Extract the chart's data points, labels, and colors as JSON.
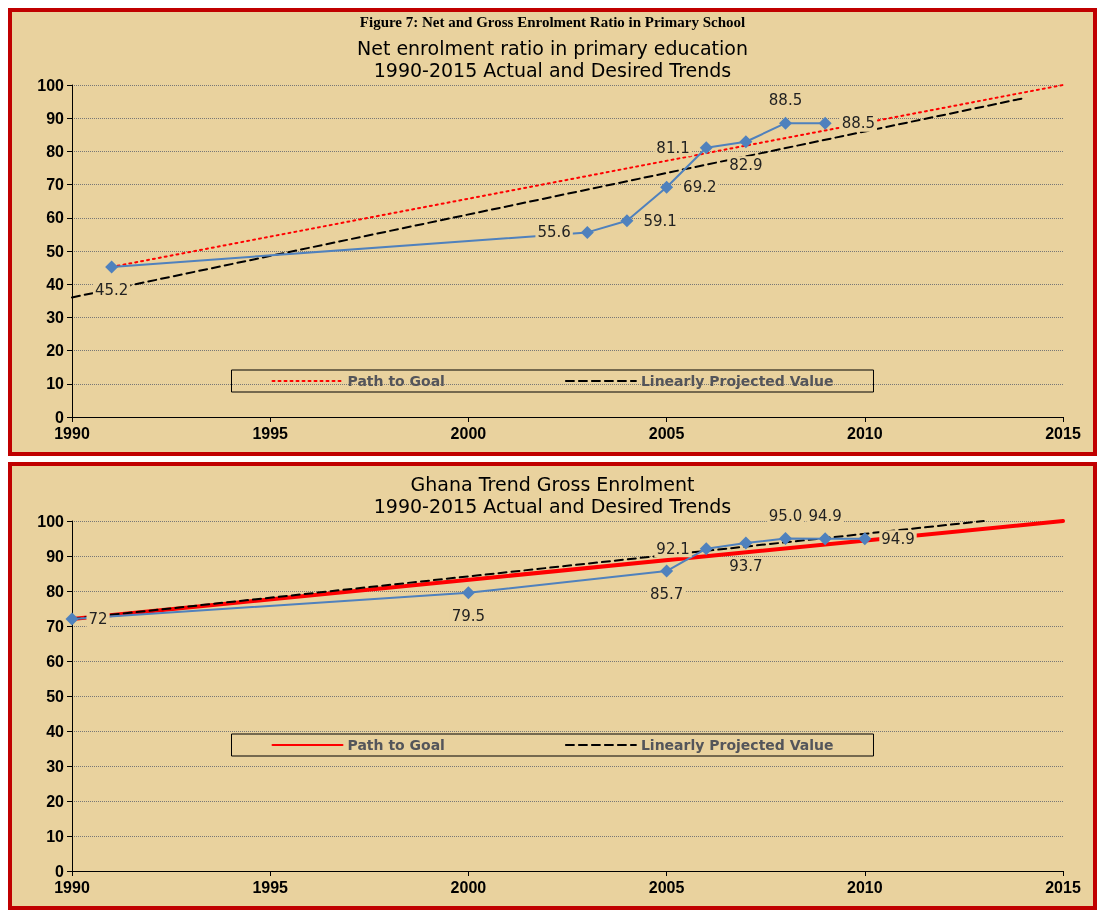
{
  "chart_data": [
    {
      "type": "line",
      "title": "Net enrolment ratio in primary education\n1990-2015 Actual and Desired Trends",
      "annotations": [
        "Figure 7: Net and Gross Enrolment Ratio in Primary School"
      ],
      "xlim": [
        1990,
        2015
      ],
      "xticks": [
        1990,
        1995,
        2000,
        2005,
        2010,
        2015
      ],
      "ylim": [
        0,
        100
      ],
      "yticks": [
        0,
        10,
        20,
        30,
        40,
        50,
        60,
        70,
        80,
        90,
        100
      ],
      "grid": "y",
      "legend": "bottom",
      "series": [
        {
          "color": "#4f81bd",
          "marker": "diamond",
          "line_style": "solid",
          "x": [
            1991,
            2003,
            2004,
            2005,
            2006,
            2007,
            2008,
            2009
          ],
          "values": [
            45.2,
            55.6,
            59.1,
            69.2,
            81.1,
            82.9,
            88.5,
            88.5
          ],
          "value_labels": [
            "45.2",
            "55.6",
            "59.1",
            "69.2",
            "81.1",
            "82.9",
            "88.5",
            "88.5"
          ]
        },
        {
          "name": "Path to Goal",
          "color": "#ff0000",
          "marker": "none",
          "line_style": "dotted",
          "x": [
            1991,
            2015
          ],
          "values": [
            45.2,
            100
          ]
        },
        {
          "name": "Linearly Projected Value",
          "color": "#000000",
          "marker": "none",
          "line_style": "dashed",
          "x": [
            1990,
            2014
          ],
          "values": [
            36,
            96
          ]
        }
      ]
    },
    {
      "type": "line",
      "title": "Ghana Trend Gross Enrolment\n1990-2015 Actual and Desired Trends",
      "xlim": [
        1990,
        2015
      ],
      "xticks": [
        1990,
        1995,
        2000,
        2005,
        2010,
        2015
      ],
      "ylim": [
        0,
        100
      ],
      "yticks": [
        0,
        10,
        20,
        30,
        40,
        50,
        60,
        70,
        80,
        90,
        100
      ],
      "grid": "y",
      "legend": "bottom",
      "series": [
        {
          "color": "#4f81bd",
          "marker": "diamond",
          "line_style": "solid",
          "x": [
            1990,
            2000,
            2005,
            2006,
            2007,
            2008,
            2009,
            2010
          ],
          "values": [
            72,
            79.5,
            85.7,
            92.1,
            93.7,
            95.0,
            94.9,
            94.9
          ],
          "value_labels": [
            "72",
            "79.5",
            "85.7",
            "92.1",
            "93.7",
            "95.0",
            "94.9",
            "94.9"
          ]
        },
        {
          "name": "Path to Goal",
          "color": "#ff0000",
          "marker": "none",
          "line_style": "solid",
          "x": [
            1990,
            2015
          ],
          "values": [
            72,
            100
          ]
        },
        {
          "name": "Linearly Projected Value",
          "color": "#000000",
          "marker": "none",
          "line_style": "dashed",
          "x": [
            1990,
            2013
          ],
          "values": [
            72,
            100
          ]
        }
      ]
    }
  ]
}
